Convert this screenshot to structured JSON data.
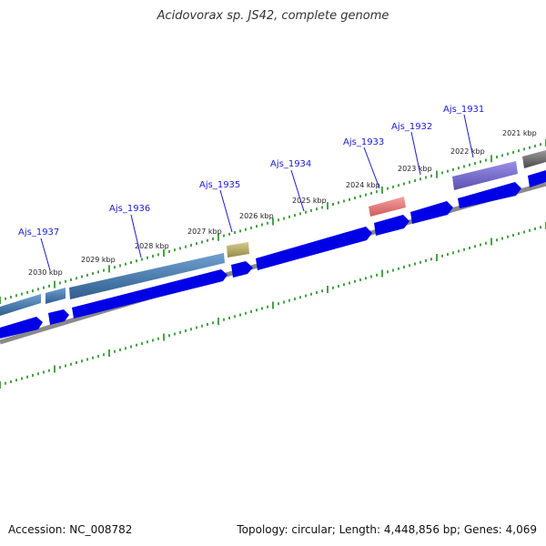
{
  "title": "Acidovorax sp. JS42, complete genome",
  "footer": {
    "accession": "Accession: NC_008782",
    "summary": "Topology: circular; Length: 4,448,856 bp; Genes: 4,069"
  },
  "colors": {
    "cds_forward": "#0000e6",
    "backbone": "#8a8a8a",
    "ruler_ticks": "#1a8a1a",
    "gene_label": "#1a1ad4"
  },
  "kbp_labels": [
    "2030 kbp",
    "2029 kbp",
    "2028 kbp",
    "2027 kbp",
    "2026 kbp",
    "2025 kbp",
    "2024 kbp",
    "2023 kbp",
    "2022 kbp",
    "2021 kbp"
  ],
  "genes": [
    {
      "id": "Ajs_1937",
      "color": "#4a7fb0"
    },
    {
      "id": "Ajs_1936",
      "color": "#4a7fb0"
    },
    {
      "id": "Ajs_1935",
      "color": "#b8ad6a"
    },
    {
      "id": "Ajs_1934",
      "color": "#2222cc"
    },
    {
      "id": "Ajs_1933",
      "color": "#e87878"
    },
    {
      "id": "Ajs_1932",
      "color": "#2222cc"
    },
    {
      "id": "Ajs_1931",
      "color": "#7a70d0"
    }
  ]
}
